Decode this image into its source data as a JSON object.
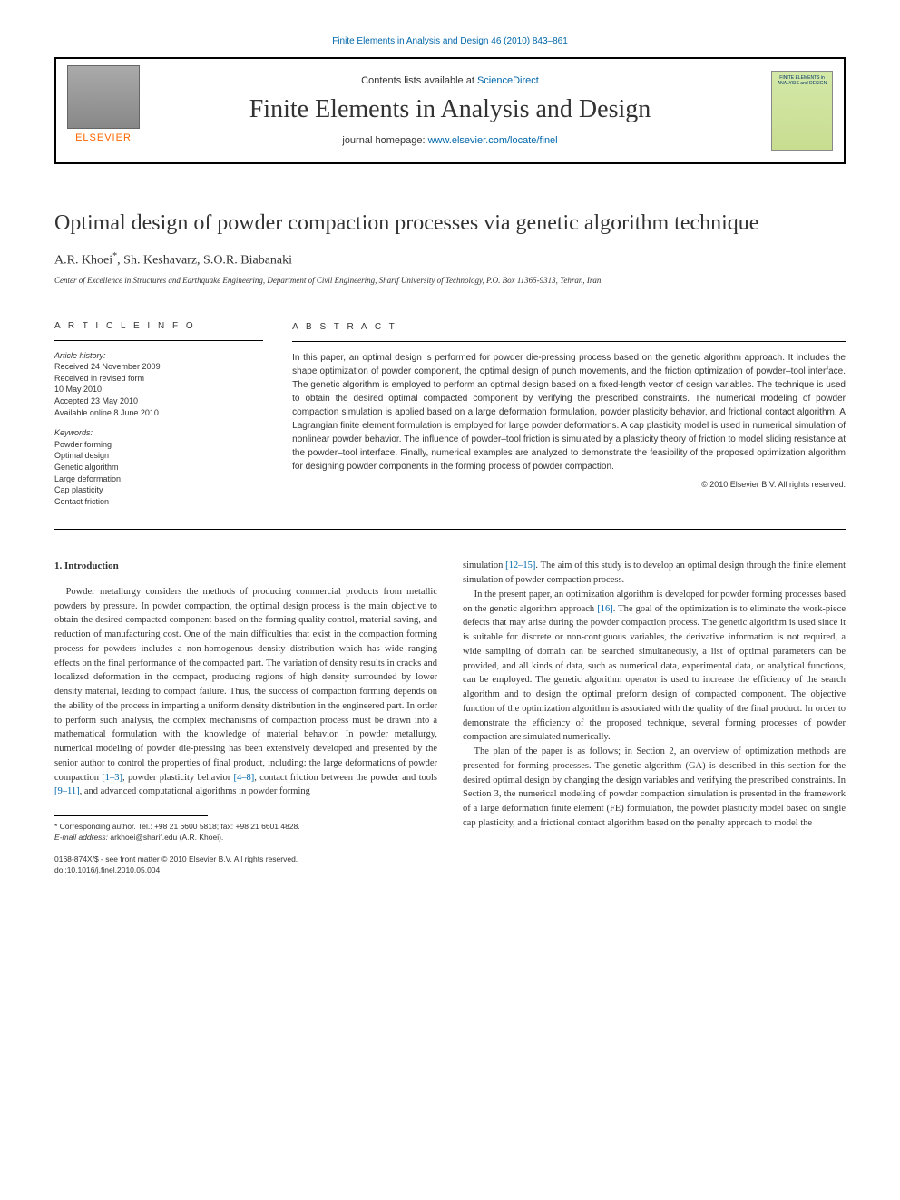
{
  "top_link": "Finite Elements in Analysis and Design 46 (2010) 843–861",
  "header": {
    "contents_prefix": "Contents lists available at ",
    "contents_link": "ScienceDirect",
    "journal_name": "Finite Elements in Analysis and Design",
    "homepage_prefix": "journal homepage: ",
    "homepage_link": "www.elsevier.com/locate/finel",
    "elsevier_label": "ELSEVIER",
    "cover_text": "FINITE ELEMENTS in ANALYSIS and DESIGN"
  },
  "article": {
    "title": "Optimal design of powder compaction processes via genetic algorithm technique",
    "authors_html": "A.R. Khoei *, Sh. Keshavarz, S.O.R. Biabanaki",
    "author_1": "A.R. Khoei",
    "author_mark": "*",
    "author_2": ", Sh. Keshavarz, S.O.R. Biabanaki",
    "affiliation": "Center of Excellence in Structures and Earthquake Engineering, Department of Civil Engineering, Sharif University of Technology, P.O. Box 11365-9313, Tehran, Iran"
  },
  "info": {
    "heading": "A R T I C L E   I N F O",
    "history_label": "Article history:",
    "history_lines": [
      "Received 24 November 2009",
      "Received in revised form",
      "10 May 2010",
      "Accepted 23 May 2010",
      "Available online 8 June 2010"
    ],
    "keywords_label": "Keywords:",
    "keywords": [
      "Powder forming",
      "Optimal design",
      "Genetic algorithm",
      "Large deformation",
      "Cap plasticity",
      "Contact friction"
    ]
  },
  "abstract": {
    "heading": "A B S T R A C T",
    "text": "In this paper, an optimal design is performed for powder die-pressing process based on the genetic algorithm approach. It includes the shape optimization of powder component, the optimal design of punch movements, and the friction optimization of powder–tool interface. The genetic algorithm is employed to perform an optimal design based on a fixed-length vector of design variables. The technique is used to obtain the desired optimal compacted component by verifying the prescribed constraints. The numerical modeling of powder compaction simulation is applied based on a large deformation formulation, powder plasticity behavior, and frictional contact algorithm. A Lagrangian finite element formulation is employed for large powder deformations. A cap plasticity model is used in numerical simulation of nonlinear powder behavior. The influence of powder–tool friction is simulated by a plasticity theory of friction to model sliding resistance at the powder–tool interface. Finally, numerical examples are analyzed to demonstrate the feasibility of the proposed optimization algorithm for designing powder components in the forming process of powder compaction.",
    "copyright": "© 2010 Elsevier B.V. All rights reserved."
  },
  "body": {
    "section_heading": "1.  Introduction",
    "col1_p1a": "Powder metallurgy considers the methods of producing commercial products from metallic powders by pressure. In powder compaction, the optimal design process is the main objective to obtain the desired compacted component based on the forming quality control, material saving, and reduction of manufacturing cost. One of the main difficulties that exist in the compaction forming process for powders includes a non-homogenous density distribution which has wide ranging effects on the final performance of the compacted part. The variation of density results in cracks and localized deformation in the compact, producing regions of high density surrounded by lower density material, leading to compact failure. Thus, the success of compaction forming depends on the ability of the process in imparting a uniform density distribution in the engineered part. In order to perform such analysis, the complex mechanisms of compaction process must be drawn into a mathematical formulation with the knowledge of material behavior. In powder metallurgy, numerical modeling of powder die-pressing has been extensively developed and presented by the senior author to control the properties of final product, including: the large deformations of powder compaction ",
    "ref_1_3": "[1–3]",
    "col1_p1b": ", powder plasticity behavior ",
    "ref_4_8": "[4–8]",
    "col1_p1c": ", contact friction between the powder and tools ",
    "ref_9_11": "[9–11]",
    "col1_p1d": ", and advanced computational algorithms in powder forming",
    "col2_p1a": "simulation ",
    "ref_12_15": "[12–15]",
    "col2_p1b": ". The aim of this study is to develop an optimal design through the finite element simulation of powder compaction process.",
    "col2_p2a": "In the present paper, an optimization algorithm is developed for powder forming processes based on the genetic algorithm approach ",
    "ref_16": "[16]",
    "col2_p2b": ". The goal of the optimization is to eliminate the work-piece defects that may arise during the powder compaction process. The genetic algorithm is used since it is suitable for discrete or non-contiguous variables, the derivative information is not required, a wide sampling of domain can be searched simultaneously, a list of optimal parameters can be provided, and all kinds of data, such as numerical data, experimental data, or analytical functions, can be employed. The genetic algorithm operator is used to increase the efficiency of the search algorithm and to design the optimal preform design of compacted component. The objective function of the optimization algorithm is associated with the quality of the final product. In order to demonstrate the efficiency of the proposed technique, several forming processes of powder compaction are simulated numerically.",
    "col2_p3": "The plan of the paper is as follows; in Section 2, an overview of optimization methods are presented for forming processes. The genetic algorithm (GA) is described in this section for the desired optimal design by changing the design variables and verifying the prescribed constraints. In Section 3, the numerical modeling of powder compaction simulation is presented in the framework of a large deformation finite element (FE) formulation, the powder plasticity model based on single cap plasticity, and a frictional contact algorithm based on the penalty approach to model the"
  },
  "footnote": {
    "corr_label": "* Corresponding author. ",
    "corr_text": "Tel.: +98 21 6600 5818; fax: +98 21 6601 4828.",
    "email_label": "E-mail address: ",
    "email": "arkhoei@sharif.edu",
    "email_suffix": " (A.R. Khoei)."
  },
  "doi": {
    "issn_line": "0168-874X/$ - see front matter © 2010 Elsevier B.V. All rights reserved.",
    "doi_line": "doi:10.1016/j.finel.2010.05.004"
  },
  "colors": {
    "link": "#0066aa",
    "elsevier_orange": "#ff6600",
    "cover_bg": "#d4e8a8"
  }
}
